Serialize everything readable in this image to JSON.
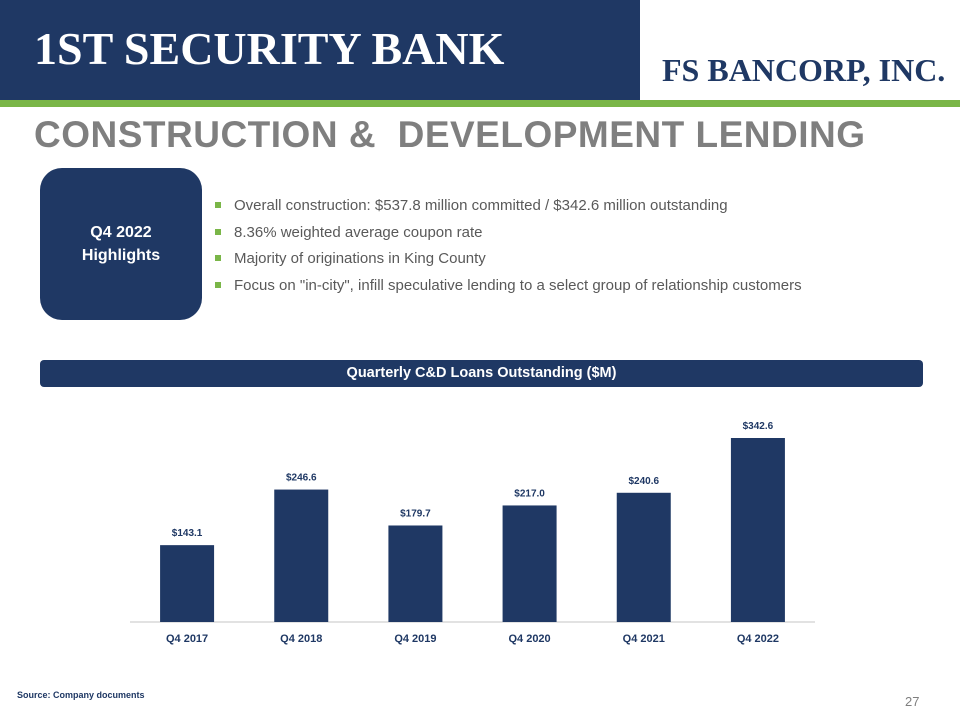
{
  "header": {
    "bank_logo": "1ST SECURITY BANK",
    "parent_logo": "FS BANCORP, INC."
  },
  "title": "CONSTRUCTION &  DEVELOPMENT LENDING",
  "highlights": {
    "line1": "Q4 2022",
    "line2": "Highlights",
    "bullets": [
      "Overall construction: $537.8 million committed / $342.6 million outstanding",
      "8.36% weighted average coupon rate",
      "Majority of originations in King County",
      "Focus on \"in-city\", infill speculative lending to a select group of  relationship customers"
    ]
  },
  "chart_data": {
    "type": "bar",
    "title": "Quarterly C&D Loans Outstanding ($M)",
    "categories": [
      "Q4 2017",
      "Q4 2018",
      "Q4 2019",
      "Q4 2020",
      "Q4 2021",
      "Q4 2022"
    ],
    "values": [
      143.1,
      246.6,
      179.7,
      217.0,
      240.6,
      342.6
    ],
    "value_labels": [
      "$143.1",
      "$246.6",
      "$179.7",
      "$217.0",
      "$240.6",
      "$342.6"
    ],
    "xlabel": "",
    "ylabel": "",
    "ylim": [
      0,
      400
    ],
    "grid": false,
    "colors": {
      "bar": "#1f3864",
      "axis": "#d9d9d9",
      "label": "#1f3864"
    }
  },
  "footer": {
    "source": "Source: Company documents",
    "page_number": "27"
  },
  "colors": {
    "navy": "#1f3864",
    "green": "#7ab648",
    "gray": "#7f7f7f"
  }
}
